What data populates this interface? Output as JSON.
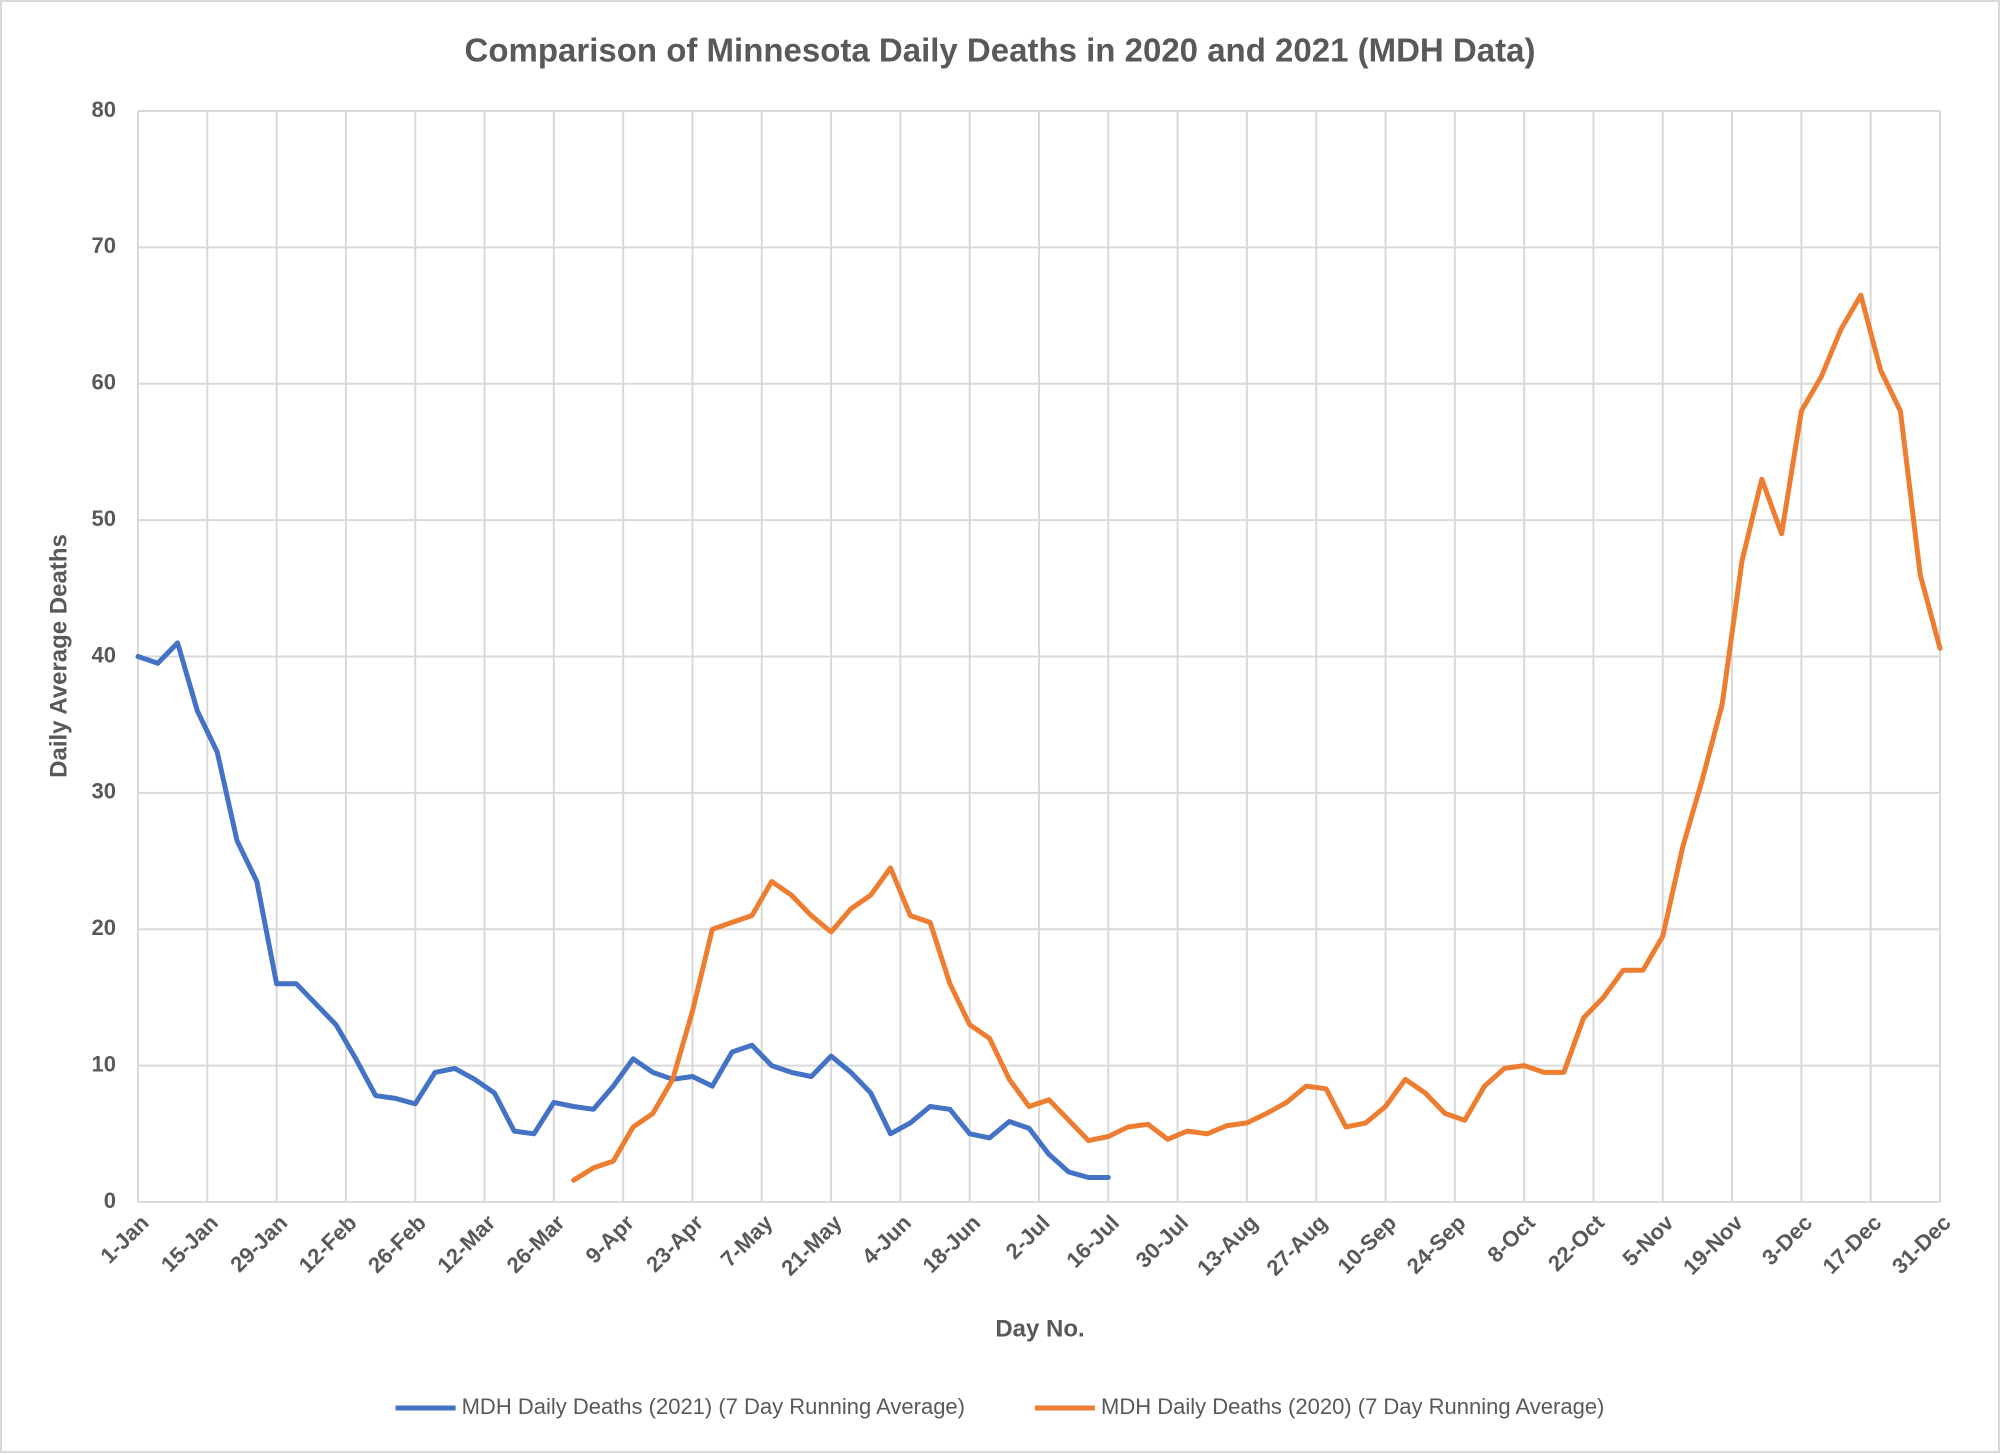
{
  "chart_data": {
    "type": "line",
    "title": "Comparison of Minnesota Daily Deaths in 2020 and 2021 (MDH Data)",
    "x_label": "Day No.",
    "y_label": "Daily Average Deaths",
    "x": [
      1,
      5,
      9,
      13,
      17,
      21,
      25,
      29,
      33,
      37,
      41,
      45,
      49,
      53,
      57,
      61,
      65,
      69,
      73,
      77,
      81,
      85,
      89,
      93,
      97,
      101,
      105,
      109,
      113,
      117,
      121,
      125,
      129,
      133,
      137,
      141,
      145,
      149,
      153,
      157,
      161,
      165,
      169,
      173,
      177,
      181,
      185,
      189,
      193,
      197,
      201,
      205,
      209,
      213,
      217,
      221,
      225,
      229,
      233,
      237,
      241,
      245,
      249,
      253,
      257,
      261,
      265,
      269,
      273,
      277,
      281,
      285,
      289,
      293,
      297,
      301,
      305,
      309,
      313,
      317,
      321,
      325,
      329,
      333,
      337,
      341,
      345,
      349,
      353,
      357,
      361,
      365
    ],
    "series": [
      {
        "name": "MDH Daily Deaths (2021) (7 Day Running Average)",
        "color": "#4472c4",
        "values": [
          40,
          39.5,
          41,
          36,
          33,
          26.5,
          23.5,
          16,
          16,
          14.5,
          13,
          10.5,
          7.8,
          7.6,
          7.2,
          9.5,
          9.8,
          9,
          8,
          5.2,
          5,
          7.3,
          7,
          6.8,
          8.5,
          10.5,
          9.5,
          9,
          9.2,
          8.5,
          11,
          11.5,
          10,
          9.5,
          9.2,
          10.7,
          9.5,
          8,
          5,
          5.8,
          7,
          6.8,
          5,
          4.7,
          5.9,
          5.4,
          3.5,
          2.2,
          1.8,
          1.8,
          null,
          null,
          null,
          null,
          null,
          null,
          null,
          null,
          null,
          null,
          null,
          null,
          null,
          null,
          null,
          null,
          null,
          null,
          null,
          null,
          null,
          null,
          null,
          null,
          null,
          null,
          null,
          null,
          null,
          null,
          null,
          null,
          null,
          null,
          null,
          null,
          null,
          null,
          null,
          null,
          null,
          null
        ]
      },
      {
        "name": "MDH Daily Deaths (2020) (7 Day Running Average)",
        "color": "#ed7d31",
        "values": [
          null,
          null,
          null,
          null,
          null,
          null,
          null,
          null,
          null,
          null,
          null,
          null,
          null,
          null,
          null,
          null,
          null,
          null,
          null,
          null,
          null,
          null,
          1.6,
          2.5,
          3,
          5.5,
          6.5,
          9,
          14,
          20,
          20.5,
          21,
          23.5,
          22.5,
          21,
          19.8,
          21.5,
          22.5,
          24.5,
          21,
          20.5,
          16,
          13,
          12,
          9,
          7,
          7.5,
          6,
          4.5,
          4.8,
          5.5,
          5.7,
          4.6,
          5.2,
          5,
          5.6,
          5.8,
          6.5,
          7.3,
          8.5,
          8.3,
          5.5,
          5.8,
          7,
          9,
          8,
          6.5,
          6,
          8.5,
          9.8,
          10,
          9.5,
          9.5,
          13.5,
          15,
          17,
          17,
          19.5,
          26,
          31,
          36.5,
          47,
          53,
          49,
          58,
          60.5,
          64,
          66.5,
          61,
          58,
          46,
          40.6
        ]
      }
    ],
    "xlim": [
      1,
      365
    ],
    "xticks": [
      {
        "value": 1,
        "label": "1-Jan"
      },
      {
        "value": 15,
        "label": "15-Jan"
      },
      {
        "value": 29,
        "label": "29-Jan"
      },
      {
        "value": 43,
        "label": "12-Feb"
      },
      {
        "value": 57,
        "label": "26-Feb"
      },
      {
        "value": 71,
        "label": "12-Mar"
      },
      {
        "value": 85,
        "label": "26-Mar"
      },
      {
        "value": 99,
        "label": "9-Apr"
      },
      {
        "value": 113,
        "label": "23-Apr"
      },
      {
        "value": 127,
        "label": "7-May"
      },
      {
        "value": 141,
        "label": "21-May"
      },
      {
        "value": 155,
        "label": "4-Jun"
      },
      {
        "value": 169,
        "label": "18-Jun"
      },
      {
        "value": 183,
        "label": "2-Jul"
      },
      {
        "value": 197,
        "label": "16-Jul"
      },
      {
        "value": 211,
        "label": "30-Jul"
      },
      {
        "value": 225,
        "label": "13-Aug"
      },
      {
        "value": 239,
        "label": "27-Aug"
      },
      {
        "value": 253,
        "label": "10-Sep"
      },
      {
        "value": 267,
        "label": "24-Sep"
      },
      {
        "value": 281,
        "label": "8-Oct"
      },
      {
        "value": 295,
        "label": "22-Oct"
      },
      {
        "value": 309,
        "label": "5-Nov"
      },
      {
        "value": 323,
        "label": "19-Nov"
      },
      {
        "value": 337,
        "label": "3-Dec"
      },
      {
        "value": 351,
        "label": "17-Dec"
      },
      {
        "value": 365,
        "label": "31-Dec"
      }
    ],
    "ylim": [
      0,
      80
    ],
    "yticks": [
      0,
      10,
      20,
      30,
      40,
      50,
      60,
      70,
      80
    ],
    "grid": true,
    "legend": "bottom"
  }
}
